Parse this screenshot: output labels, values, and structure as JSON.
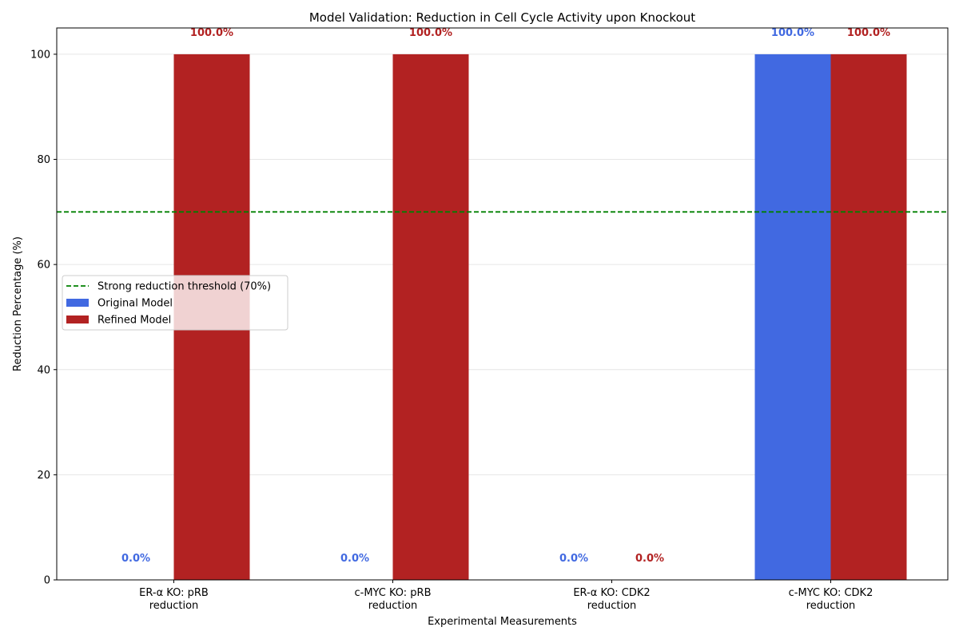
{
  "chart_data": {
    "type": "bar",
    "title": "Model Validation: Reduction in Cell Cycle Activity upon Knockout",
    "xlabel": "Experimental Measurements",
    "ylabel": "Reduction Percentage (%)",
    "categories": [
      [
        "ER-α KO: pRB",
        "reduction"
      ],
      [
        "c-MYC KO: pRB",
        "reduction"
      ],
      [
        "ER-α KO: CDK2",
        "reduction"
      ],
      [
        "c-MYC KO: CDK2",
        "reduction"
      ]
    ],
    "series": [
      {
        "name": "Original Model",
        "color": "#4169e1",
        "values": [
          0,
          0,
          0,
          100
        ],
        "labels": [
          "0.0%",
          "0.0%",
          "0.0%",
          "100.0%"
        ]
      },
      {
        "name": "Refined Model",
        "color": "#b22222",
        "values": [
          100,
          100,
          0,
          100
        ],
        "labels": [
          "100.0%",
          "100.0%",
          "0.0%",
          "100.0%"
        ]
      }
    ],
    "threshold": {
      "label": "Strong reduction threshold (70%)",
      "value": 70,
      "color": "#008000"
    },
    "ylim": [
      0,
      105
    ],
    "yticks": [
      0,
      20,
      40,
      60,
      80,
      100
    ],
    "grid": "horizontal",
    "legend_position": "center-left"
  }
}
